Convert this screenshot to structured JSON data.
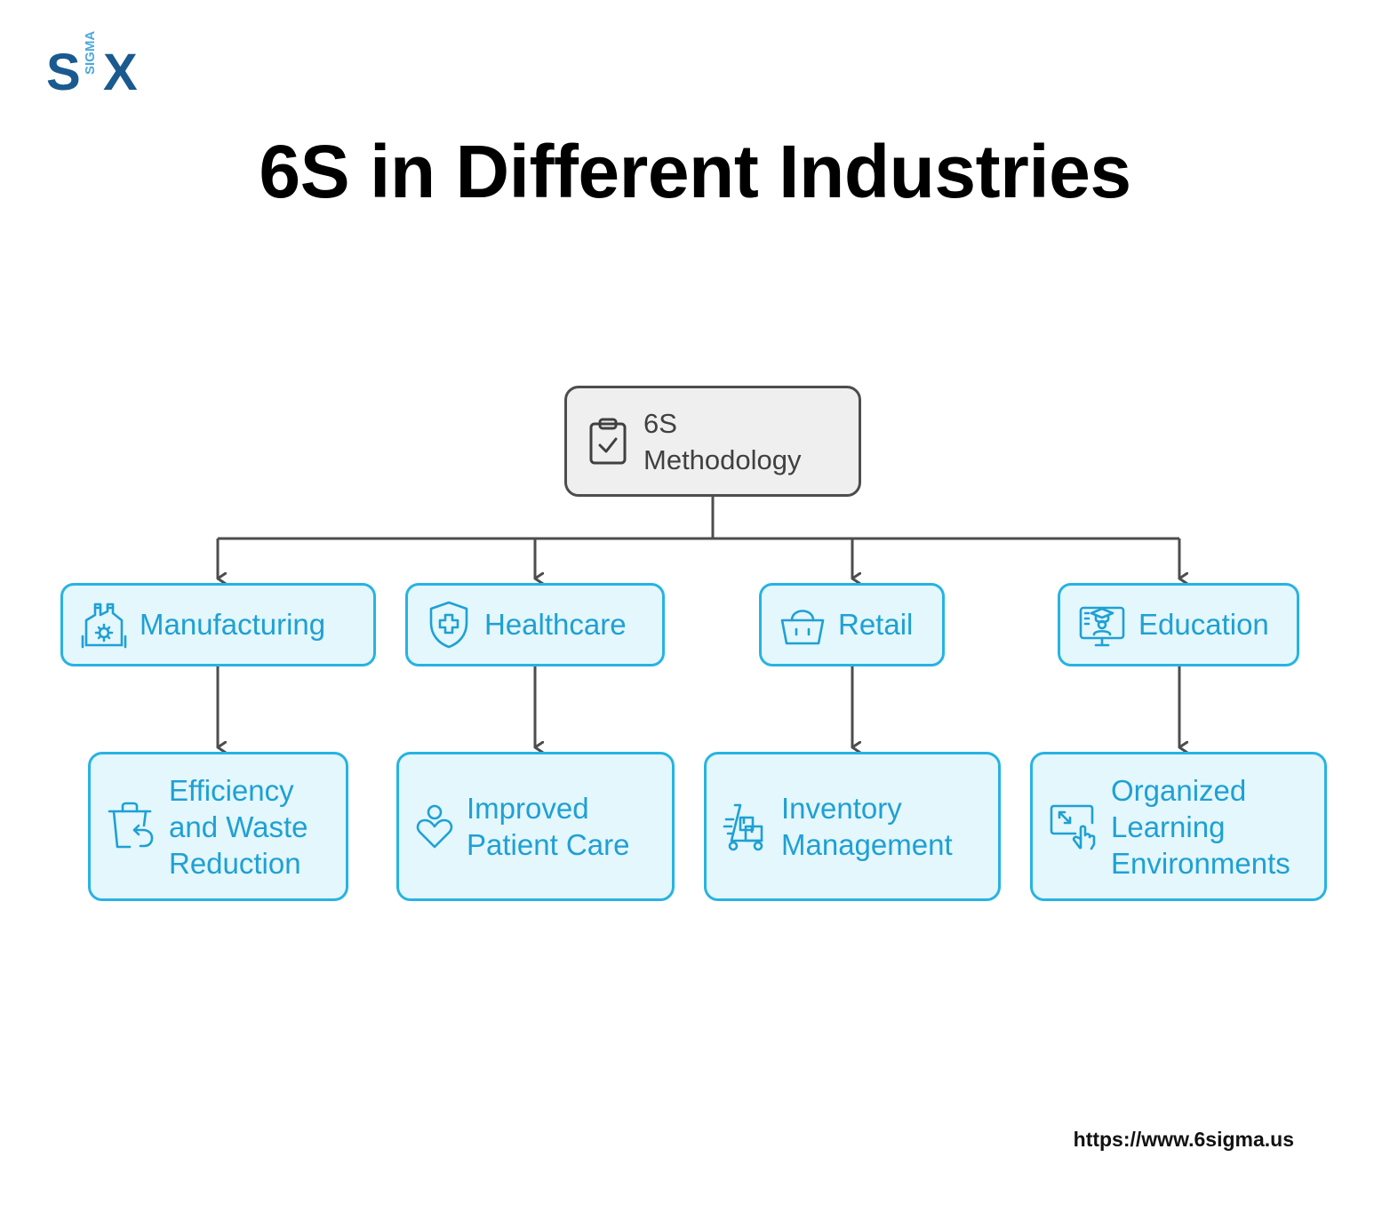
{
  "logo": {
    "letter_s": "S",
    "letter_x": "X",
    "sigma": "SIGMA"
  },
  "title": "6S in Different Industries",
  "root": {
    "line1": "6S",
    "line2": "Methodology",
    "icon": "clipboard-check-icon"
  },
  "categories": [
    {
      "label": "Manufacturing",
      "icon": "factory-gear-icon",
      "outcome": {
        "lines": [
          "Efficiency",
          "and Waste",
          "Reduction"
        ],
        "icon": "recycle-bin-icon"
      }
    },
    {
      "label": "Healthcare",
      "icon": "shield-plus-icon",
      "outcome": {
        "lines": [
          "Improved",
          "Patient Care"
        ],
        "icon": "person-heart-icon"
      }
    },
    {
      "label": "Retail",
      "icon": "shopping-basket-icon",
      "outcome": {
        "lines": [
          "Inventory",
          "Management"
        ],
        "icon": "hand-truck-boxes-icon"
      }
    },
    {
      "label": "Education",
      "icon": "online-graduate-icon",
      "outcome": {
        "lines": [
          "Organized",
          "Learning",
          "Environments"
        ],
        "icon": "expand-touch-screen-icon"
      }
    }
  ],
  "footer": {
    "url": "https://www.6sigma.us"
  },
  "colors": {
    "accent": "#27b3e2",
    "accent_text": "#1fa0d4",
    "box_fill": "#e3f7fc",
    "root_fill": "#efefef",
    "connector": "#4d4d4d",
    "logo_dark": "#1a5a8f",
    "logo_light": "#4aa8dc"
  }
}
